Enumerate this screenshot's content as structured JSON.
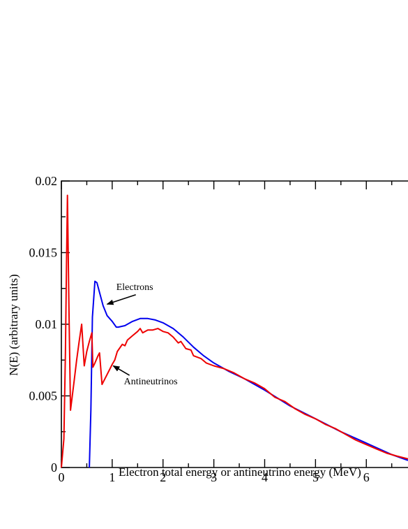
{
  "chart_data": {
    "type": "line",
    "title": "",
    "xlabel": "Electron total energy or antineutrino energy (MeV)",
    "ylabel": "N(E) (arbitrary units)",
    "xlim": [
      0,
      6.82
    ],
    "ylim": [
      0,
      0.02
    ],
    "x_ticks": [
      0,
      1,
      2,
      3,
      4,
      5,
      6
    ],
    "x_tick_labels": [
      "0",
      "1",
      "2",
      "3",
      "4",
      "5",
      "6"
    ],
    "y_ticks": [
      0,
      0.005,
      0.01,
      0.015,
      0.02
    ],
    "y_tick_labels": [
      "0",
      "0.005",
      "0.01",
      "0.015",
      "0.02"
    ],
    "grid": false,
    "legend": "none",
    "series": [
      {
        "color": "#0000ee",
        "points": [
          [
            0.55,
            0.0
          ],
          [
            0.58,
            0.004
          ],
          [
            0.61,
            0.0105
          ],
          [
            0.66,
            0.013
          ],
          [
            0.7,
            0.0129
          ],
          [
            0.76,
            0.0121
          ],
          [
            0.82,
            0.0113
          ],
          [
            0.9,
            0.0106
          ],
          [
            1.0,
            0.0102
          ],
          [
            1.08,
            0.0098
          ],
          [
            1.12,
            0.0098
          ],
          [
            1.25,
            0.0099
          ],
          [
            1.4,
            0.0102
          ],
          [
            1.55,
            0.0104
          ],
          [
            1.7,
            0.0104
          ],
          [
            1.85,
            0.0103
          ],
          [
            2.0,
            0.0101
          ],
          [
            2.2,
            0.0097
          ],
          [
            2.4,
            0.0091
          ],
          [
            2.6,
            0.0084
          ],
          [
            2.8,
            0.0078
          ],
          [
            3.0,
            0.0073
          ],
          [
            3.3,
            0.0067
          ],
          [
            3.6,
            0.0062
          ],
          [
            4.0,
            0.0054
          ],
          [
            4.5,
            0.0043
          ],
          [
            5.0,
            0.0034
          ],
          [
            5.5,
            0.0025
          ],
          [
            6.0,
            0.0017
          ],
          [
            6.5,
            0.0009
          ],
          [
            6.82,
            0.0005
          ]
        ]
      },
      {
        "color": "#ee0000",
        "points": [
          [
            0.0,
            0.0
          ],
          [
            0.05,
            0.002
          ],
          [
            0.08,
            0.008
          ],
          [
            0.1,
            0.014
          ],
          [
            0.12,
            0.019
          ],
          [
            0.15,
            0.011
          ],
          [
            0.18,
            0.004
          ],
          [
            0.25,
            0.006
          ],
          [
            0.3,
            0.0075
          ],
          [
            0.35,
            0.0088
          ],
          [
            0.4,
            0.01
          ],
          [
            0.45,
            0.0071
          ],
          [
            0.5,
            0.0081
          ],
          [
            0.55,
            0.0088
          ],
          [
            0.6,
            0.0094
          ],
          [
            0.62,
            0.007
          ],
          [
            0.66,
            0.0073
          ],
          [
            0.72,
            0.0078
          ],
          [
            0.75,
            0.008
          ],
          [
            0.8,
            0.0058
          ],
          [
            0.9,
            0.0065
          ],
          [
            1.0,
            0.0072
          ],
          [
            1.05,
            0.0075
          ],
          [
            1.1,
            0.0081
          ],
          [
            1.2,
            0.0086
          ],
          [
            1.25,
            0.0085
          ],
          [
            1.3,
            0.0089
          ],
          [
            1.4,
            0.0092
          ],
          [
            1.5,
            0.0095
          ],
          [
            1.55,
            0.0097
          ],
          [
            1.6,
            0.0094
          ],
          [
            1.7,
            0.0096
          ],
          [
            1.8,
            0.0096
          ],
          [
            1.9,
            0.0097
          ],
          [
            2.0,
            0.0095
          ],
          [
            2.1,
            0.0094
          ],
          [
            2.2,
            0.0091
          ],
          [
            2.3,
            0.0087
          ],
          [
            2.35,
            0.0088
          ],
          [
            2.45,
            0.0083
          ],
          [
            2.55,
            0.0082
          ],
          [
            2.6,
            0.0078
          ],
          [
            2.75,
            0.0076
          ],
          [
            2.85,
            0.0073
          ],
          [
            3.0,
            0.0071
          ],
          [
            3.2,
            0.0069
          ],
          [
            3.4,
            0.0066
          ],
          [
            3.6,
            0.0062
          ],
          [
            3.8,
            0.0059
          ],
          [
            4.0,
            0.0055
          ],
          [
            4.2,
            0.0049
          ],
          [
            4.4,
            0.0046
          ],
          [
            4.6,
            0.0041
          ],
          [
            4.8,
            0.0037
          ],
          [
            5.0,
            0.0034
          ],
          [
            5.2,
            0.003
          ],
          [
            5.4,
            0.0027
          ],
          [
            5.6,
            0.0023
          ],
          [
            5.8,
            0.0019
          ],
          [
            6.0,
            0.0016
          ],
          [
            6.2,
            0.0013
          ],
          [
            6.4,
            0.001
          ],
          [
            6.6,
            0.0008
          ],
          [
            6.82,
            0.0006
          ]
        ]
      }
    ],
    "annotations": [
      {
        "text": "Electrons",
        "x": 1.08,
        "y": 0.0124,
        "arrow_to": [
          0.9,
          0.0114
        ]
      },
      {
        "text": "Antineutrinos",
        "x": 1.23,
        "y": 0.0058,
        "arrow_to": [
          1.02,
          0.0071
        ]
      }
    ]
  }
}
